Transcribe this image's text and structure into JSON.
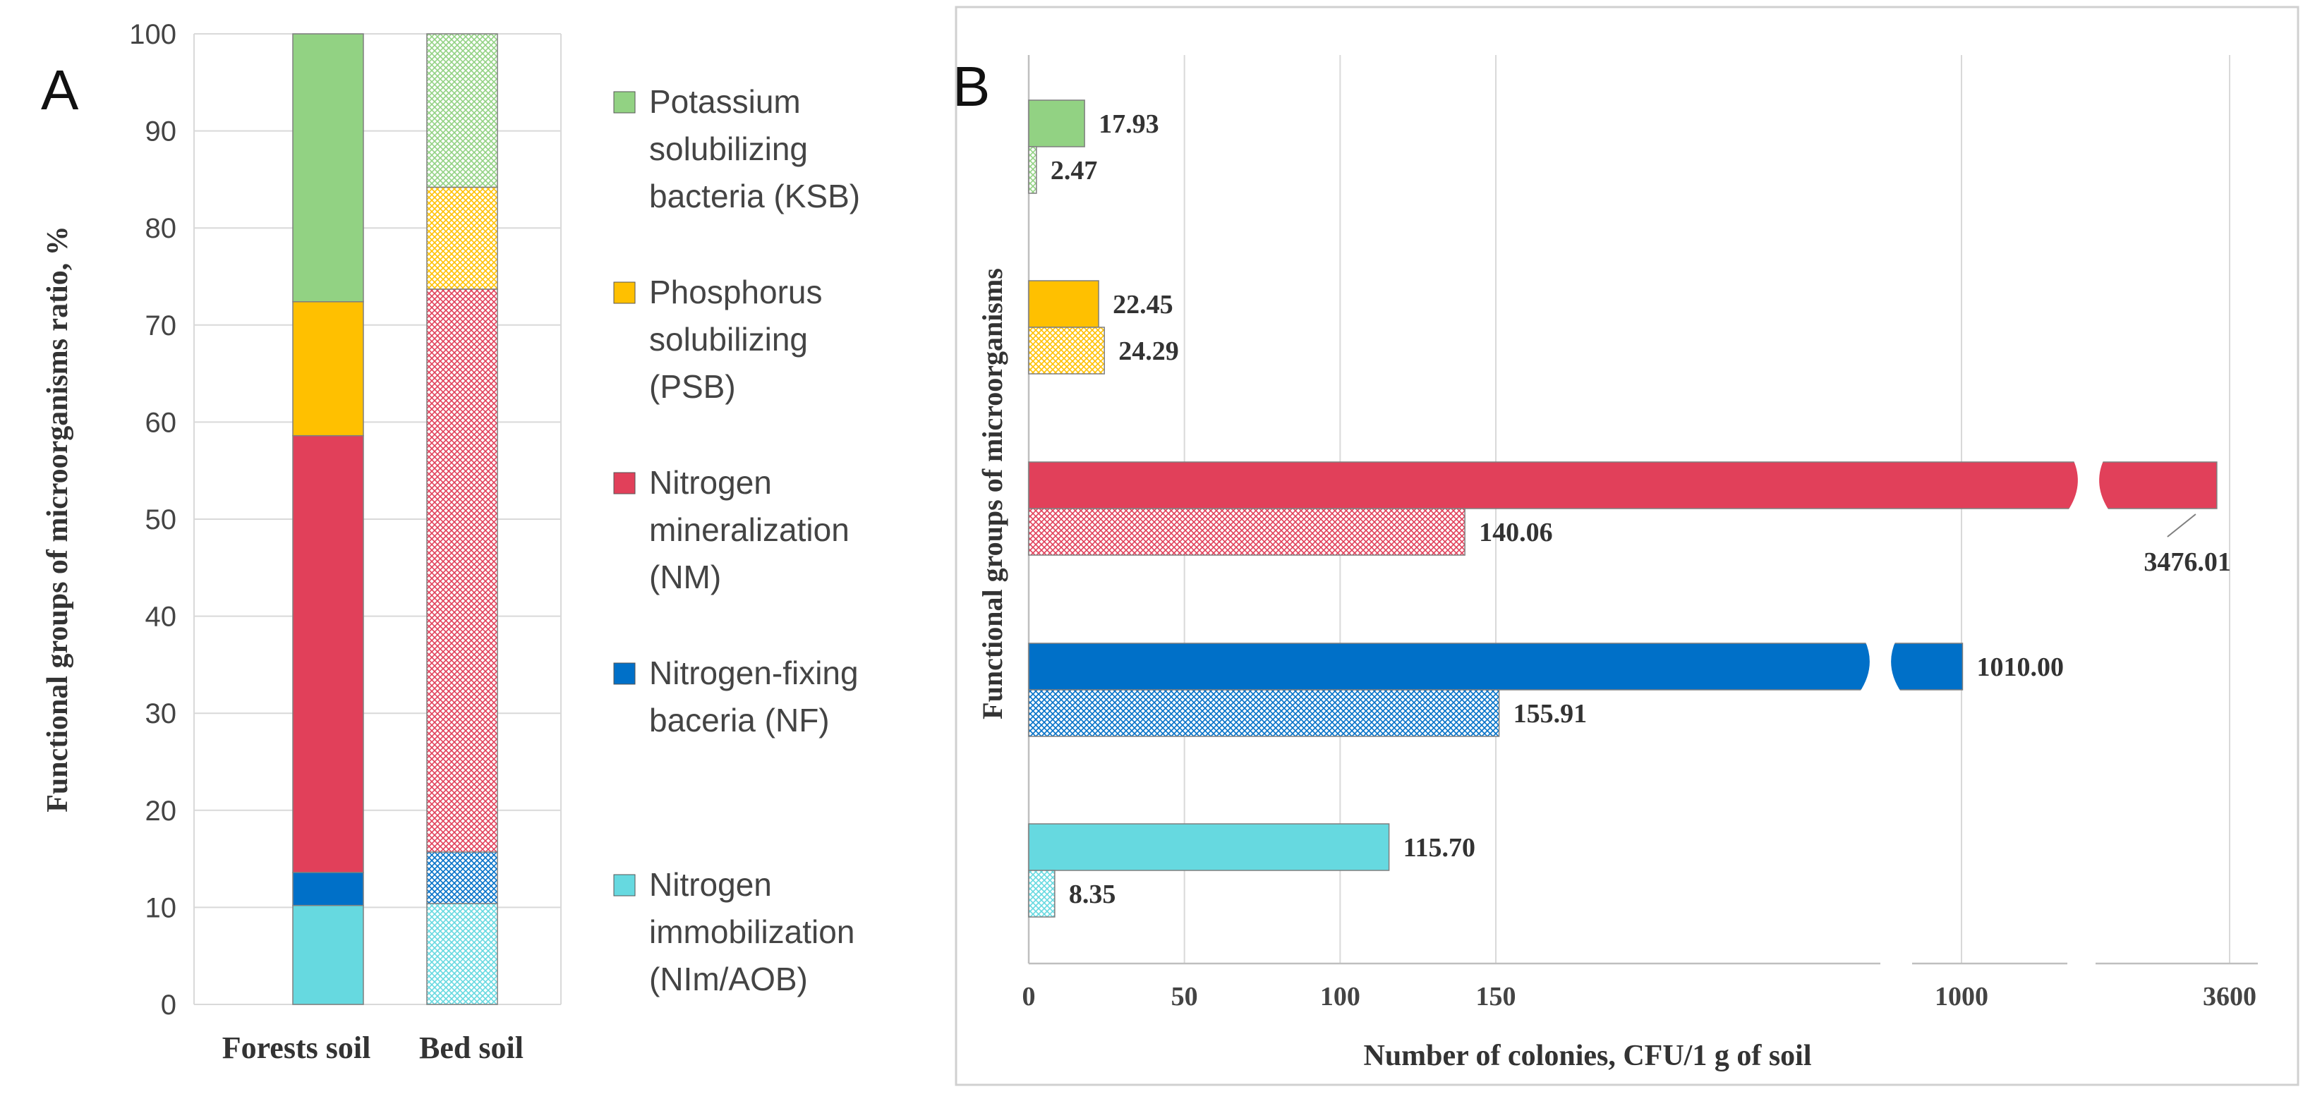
{
  "chart_data": [
    {
      "panel_label": "A",
      "type": "bar",
      "stacked": true,
      "categories": [
        "Forests soil",
        "Bed soil"
      ],
      "ylabel": "Functional groups of microorganisms ratio, %",
      "xlabel": "",
      "ylim": [
        0,
        100
      ],
      "yticks": [
        "0",
        "10",
        "20",
        "30",
        "40",
        "50",
        "60",
        "70",
        "80",
        "90",
        "100"
      ],
      "grid": true,
      "legend_position": "right",
      "series": [
        {
          "name": "Nitrogen immobilization (NIm/AOB)",
          "legend_lines": [
            "Nitrogen",
            "immobilization",
            "(NIm/AOB)"
          ],
          "color": "#66d9e0",
          "values": [
            10.2,
            10.4
          ]
        },
        {
          "name": "Nitrogen-fixing baceria (NF)",
          "legend_lines": [
            "Nitrogen-fixing",
            "baceria (NF)"
          ],
          "color": "#0070c8",
          "values": [
            3.4,
            5.3
          ]
        },
        {
          "name": "Nitrogen mineralization (NM)",
          "legend_lines": [
            "Nitrogen",
            "mineralization",
            "(NM)"
          ],
          "color": "#e1405a",
          "values": [
            45.0,
            58.0
          ]
        },
        {
          "name": "Phosphorus solubilizing (PSB)",
          "legend_lines": [
            "Phosphorus",
            "solubilizing",
            "(PSB)"
          ],
          "color": "#ffc000",
          "values": [
            13.8,
            10.5
          ]
        },
        {
          "name": "Potassium solubilizing bacteria (KSB)",
          "legend_lines": [
            "Potassium",
            "solubilizing",
            "bacteria (KSB)"
          ],
          "color": "#92d283",
          "values": [
            27.6,
            15.8
          ]
        }
      ]
    },
    {
      "panel_label": "B",
      "type": "bar",
      "orientation": "horizontal",
      "xlabel": "Number of colonies, CFU/1 g of soil",
      "ylabel": "Functional groups of microorganisms",
      "axis_break": true,
      "xticks": [
        "0",
        "50",
        "100",
        "150",
        "1000",
        "3600"
      ],
      "grid": true,
      "groups": [
        {
          "name": "KSB",
          "color": "#92d283",
          "forest": 17.93,
          "bed": 2.47,
          "forest_label": "17.93",
          "bed_label": "2.47"
        },
        {
          "name": "PSB",
          "color": "#ffc000",
          "forest": 22.45,
          "bed": 24.29,
          "forest_label": "22.45",
          "bed_label": "24.29"
        },
        {
          "name": "NM",
          "color": "#e1405a",
          "forest": 3476.01,
          "bed": 140.06,
          "forest_label": "3476.01",
          "bed_label": "140.06"
        },
        {
          "name": "NF",
          "color": "#0070c8",
          "forest": 1010.0,
          "bed": 155.91,
          "forest_label": "1010.00",
          "bed_label": "155.91"
        },
        {
          "name": "NIm/AOB",
          "color": "#66d9e0",
          "forest": 115.7,
          "bed": 8.35,
          "forest_label": "115.70",
          "bed_label": "8.35"
        }
      ]
    }
  ]
}
